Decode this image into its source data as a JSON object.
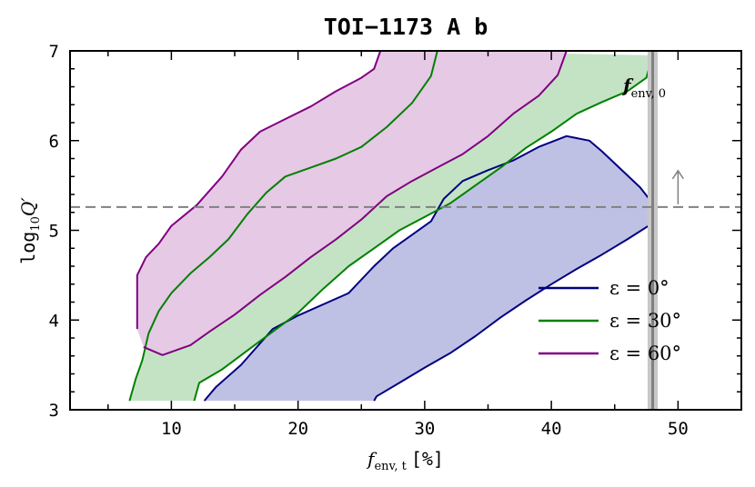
{
  "chart_data": {
    "type": "area",
    "title": "TOI−1173 A b",
    "xlabel": {
      "main": "f",
      "sub": "env, t",
      "unit": "[%]"
    },
    "ylabel": {
      "main": "log",
      "sub": "10",
      "var": "Q′"
    },
    "xlim": [
      2,
      55
    ],
    "ylim": [
      3,
      7
    ],
    "x_ticks": [
      10,
      20,
      30,
      40,
      50
    ],
    "y_ticks": [
      3,
      4,
      5,
      6,
      7
    ],
    "grid": false,
    "legend_position": "lower-right",
    "series": [
      {
        "name": "ε = 0°",
        "color": "#000080",
        "fill": "#bfc1e4",
        "upper": [
          [
            12.6,
            3.1
          ],
          [
            13.5,
            3.25
          ],
          [
            15.5,
            3.5
          ],
          [
            18,
            3.9
          ],
          [
            20,
            4.05
          ],
          [
            24,
            4.3
          ],
          [
            26,
            4.6
          ],
          [
            27.5,
            4.8
          ],
          [
            29,
            4.95
          ],
          [
            30.5,
            5.1
          ],
          [
            31.5,
            5.35
          ],
          [
            33,
            5.55
          ],
          [
            35,
            5.67
          ],
          [
            37,
            5.78
          ],
          [
            39,
            5.93
          ],
          [
            41.2,
            6.05
          ],
          [
            43,
            6.0
          ],
          [
            44,
            5.88
          ],
          [
            45.5,
            5.68
          ],
          [
            47,
            5.48
          ],
          [
            48,
            5.3
          ]
        ],
        "lower": [
          [
            26,
            3.1
          ],
          [
            26.2,
            3.15
          ],
          [
            28,
            3.3
          ],
          [
            30,
            3.47
          ],
          [
            32,
            3.63
          ],
          [
            34,
            3.82
          ],
          [
            36,
            4.03
          ],
          [
            38,
            4.22
          ],
          [
            40,
            4.4
          ],
          [
            42,
            4.57
          ],
          [
            44,
            4.73
          ],
          [
            46,
            4.9
          ],
          [
            48,
            5.08
          ]
        ]
      },
      {
        "name": "ε = 30°",
        "color": "#008000",
        "fill": "#c4e3c4",
        "upper": [
          [
            6.7,
            3.1
          ],
          [
            7.2,
            3.35
          ],
          [
            7.7,
            3.55
          ],
          [
            8.2,
            3.85
          ],
          [
            9,
            4.1
          ],
          [
            10,
            4.3
          ],
          [
            11.5,
            4.52
          ],
          [
            13,
            4.7
          ],
          [
            14.5,
            4.9
          ],
          [
            16,
            5.18
          ],
          [
            17.5,
            5.42
          ],
          [
            19,
            5.6
          ],
          [
            21,
            5.7
          ],
          [
            23,
            5.8
          ],
          [
            25,
            5.93
          ],
          [
            27,
            6.15
          ],
          [
            29,
            6.42
          ],
          [
            30.5,
            6.72
          ],
          [
            31,
            7.0
          ]
        ],
        "lower": [
          [
            11.8,
            3.1
          ],
          [
            12.2,
            3.3
          ],
          [
            14,
            3.45
          ],
          [
            16,
            3.66
          ],
          [
            18,
            3.87
          ],
          [
            20,
            4.08
          ],
          [
            22,
            4.35
          ],
          [
            24,
            4.6
          ],
          [
            26,
            4.8
          ],
          [
            28,
            5.0
          ],
          [
            30,
            5.15
          ],
          [
            32,
            5.3
          ],
          [
            34,
            5.5
          ],
          [
            36,
            5.7
          ],
          [
            38,
            5.92
          ],
          [
            40,
            6.1
          ],
          [
            42,
            6.3
          ],
          [
            44,
            6.43
          ],
          [
            46,
            6.55
          ],
          [
            47.5,
            6.7
          ],
          [
            48,
            6.95
          ]
        ]
      },
      {
        "name": "ε = 60°",
        "color": "#800080",
        "fill": "#e5c9e5",
        "upper": [
          [
            7.3,
            3.9
          ],
          [
            7.3,
            4.5
          ],
          [
            8,
            4.7
          ],
          [
            9,
            4.85
          ],
          [
            10,
            5.05
          ],
          [
            12,
            5.28
          ],
          [
            14,
            5.6
          ],
          [
            15.5,
            5.9
          ],
          [
            17,
            6.1
          ],
          [
            19,
            6.24
          ],
          [
            21,
            6.38
          ],
          [
            23,
            6.55
          ],
          [
            25,
            6.7
          ],
          [
            26,
            6.8
          ],
          [
            26.5,
            7.0
          ]
        ],
        "lower": [
          [
            7.8,
            3.7
          ],
          [
            9.3,
            3.61
          ],
          [
            11.5,
            3.72
          ],
          [
            13,
            3.87
          ],
          [
            15,
            4.06
          ],
          [
            17,
            4.28
          ],
          [
            19,
            4.48
          ],
          [
            21,
            4.7
          ],
          [
            23,
            4.9
          ],
          [
            25,
            5.12
          ],
          [
            27,
            5.38
          ],
          [
            29,
            5.55
          ],
          [
            31,
            5.7
          ],
          [
            33,
            5.85
          ],
          [
            35,
            6.05
          ],
          [
            37,
            6.3
          ],
          [
            39,
            6.5
          ],
          [
            40.5,
            6.73
          ],
          [
            41.2,
            7.0
          ]
        ]
      }
    ],
    "legend": [
      {
        "label": "ε = 0°",
        "color": "#000080"
      },
      {
        "label": "ε = 30°",
        "color": "#008000"
      },
      {
        "label": "ε = 60°",
        "color": "#800080"
      }
    ],
    "reference_lines": {
      "horizontal_y": 5.26,
      "vertical_x": 48.0,
      "vertical_band": [
        47.6,
        48.4
      ],
      "arrow_at_x": 50.0
    },
    "annotation": {
      "main": "f",
      "sub": "env, 0"
    }
  }
}
